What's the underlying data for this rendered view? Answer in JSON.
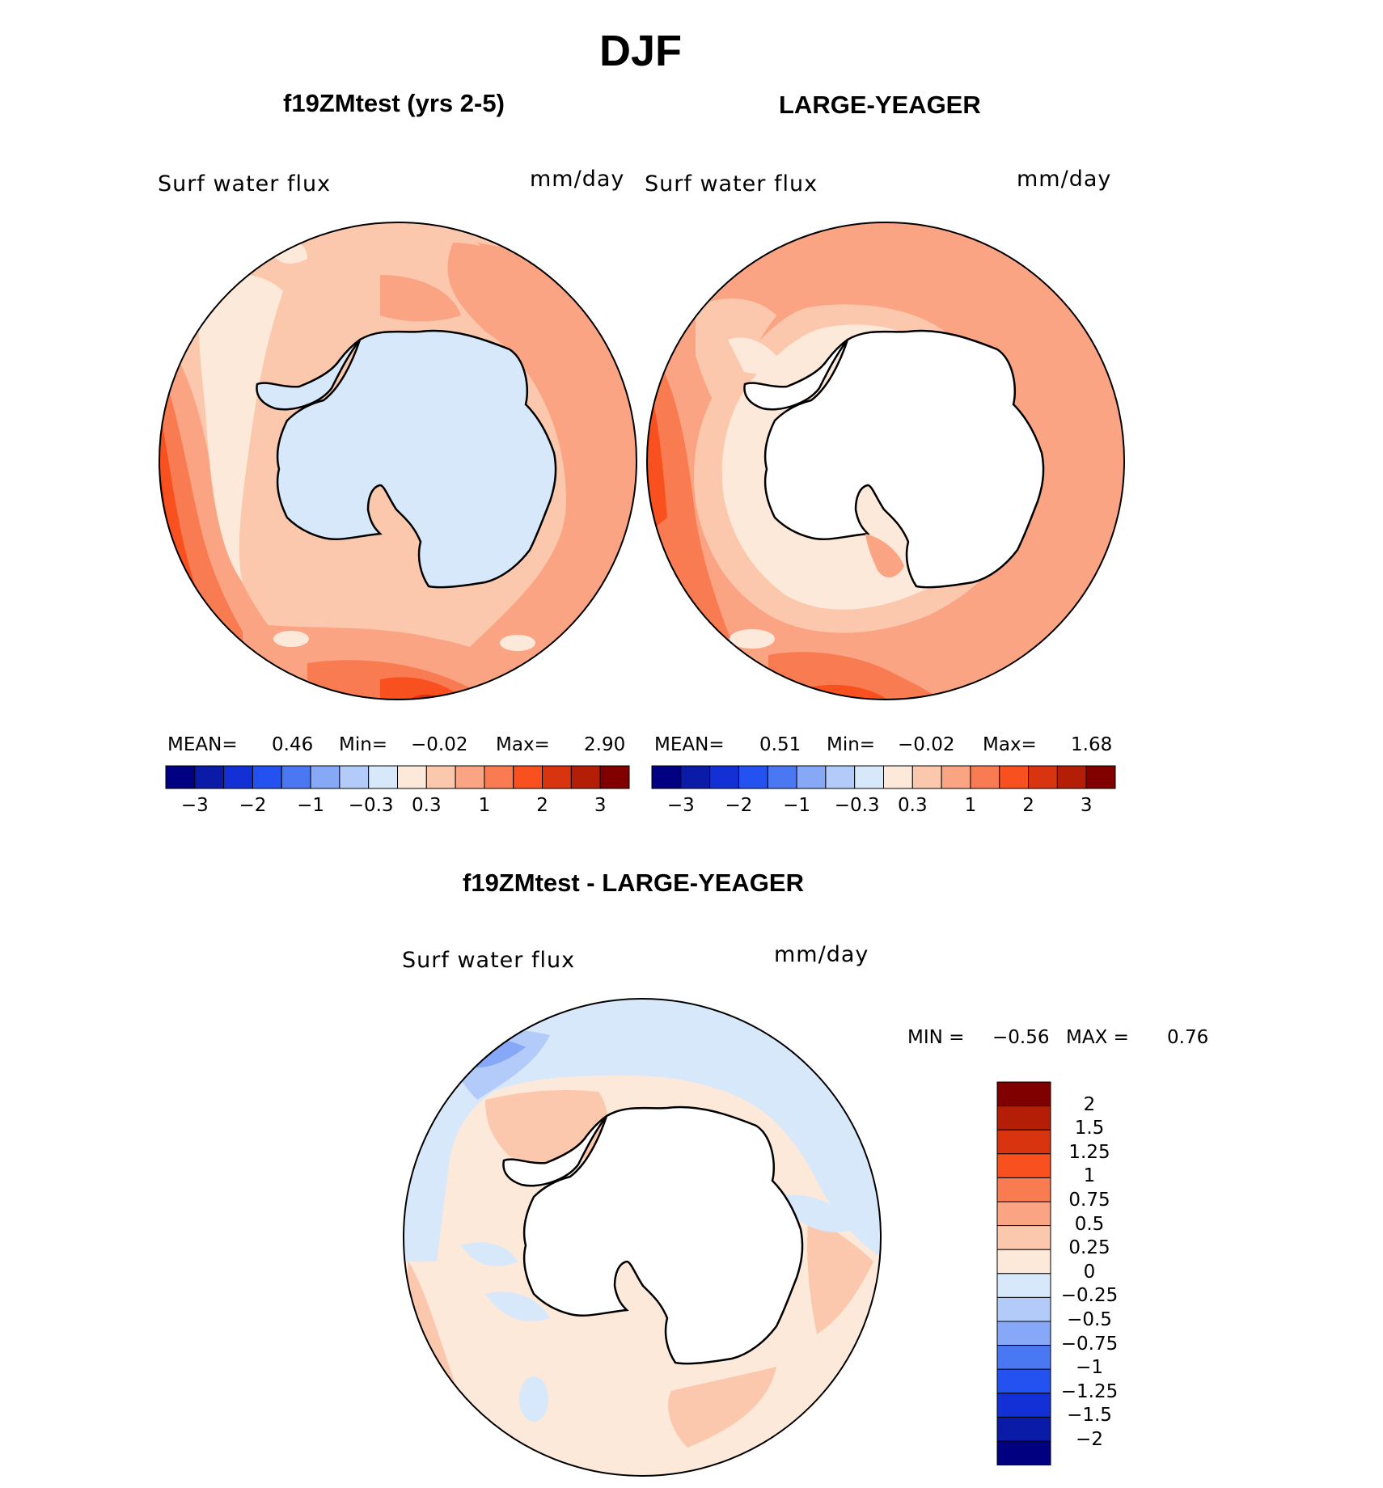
{
  "figure": {
    "title": "DJF",
    "colors": {
      "fill_m3": "#000080",
      "fill_m2_5": "#0a1ba8",
      "fill_m2": "#1230d6",
      "fill_m1_5": "#2452f0",
      "fill_m1": "#4a78f2",
      "fill_m0_6": "#86a8f6",
      "fill_m0_3": "#b3cbf8",
      "fill_m0_1": "#d8e8fb",
      "fill_0_1": "#fde9d9",
      "fill_0_3": "#fcc8ad",
      "fill_0_6": "#fba484",
      "fill_1": "#f97b52",
      "fill_1_5": "#f8501f",
      "fill_2": "#d93410",
      "fill_2_5": "#b51e06",
      "fill_3": "#800000",
      "land_light_blue": "#d8e8fb",
      "land_white": "#ffffff"
    }
  },
  "panels": [
    {
      "title": "f19ZMtest (yrs 2-5)",
      "left_label": "Surf water flux",
      "right_label": "mm/day",
      "stats": {
        "mean_label": "MEAN=",
        "mean": "0.46",
        "min_label": "Min=",
        "min": "−0.02",
        "max_label": "Max=",
        "max": "2.90"
      },
      "land_fill": "light_blue",
      "value_range": {
        "min": -0.02,
        "max": 2.9,
        "mean": 0.46
      }
    },
    {
      "title": "LARGE-YEAGER",
      "left_label": "Surf water flux",
      "right_label": "mm/day",
      "stats": {
        "mean_label": "MEAN=",
        "mean": "0.51",
        "min_label": "Min=",
        "min": "−0.02",
        "max_label": "Max=",
        "max": "1.68"
      },
      "land_fill": "white",
      "value_range": {
        "min": -0.02,
        "max": 1.68,
        "mean": 0.51
      }
    }
  ],
  "colorbar_top": {
    "levels": [
      -3,
      -2.5,
      -2,
      -1.5,
      -1,
      -0.6,
      -0.3,
      -0.1,
      0.1,
      0.3,
      0.6,
      1,
      1.5,
      2,
      2.5,
      3
    ],
    "tick_labels": [
      "−3",
      "−2",
      "−1",
      "−0.3",
      "0.3",
      "1",
      "2",
      "3"
    ]
  },
  "diff_panel": {
    "title": "f19ZMtest - LARGE-YEAGER",
    "left_label": "Surf water flux",
    "right_label": "mm/day",
    "minmax": {
      "min_label": "MIN =",
      "min": "−0.56",
      "max_label": "MAX =",
      "max": "0.76"
    },
    "value_range": {
      "min": -0.56,
      "max": 0.76
    }
  },
  "colorbar_diff": {
    "tick_labels_top_to_bottom": [
      "2",
      "1.5",
      "1.25",
      "1",
      "0.75",
      "0.5",
      "0.25",
      "0",
      "−0.25",
      "−0.5",
      "−0.75",
      "−1",
      "−1.25",
      "−1.5",
      "−2"
    ],
    "colors_top_to_bottom": [
      "#800000",
      "#b51e06",
      "#d93410",
      "#f8501f",
      "#f97b52",
      "#fba484",
      "#fcc8ad",
      "#fde9d9",
      "#d8e8fb",
      "#b3cbf8",
      "#86a8f6",
      "#4a78f2",
      "#2452f0",
      "#1230d6",
      "#0a1ba8",
      "#000080"
    ]
  }
}
